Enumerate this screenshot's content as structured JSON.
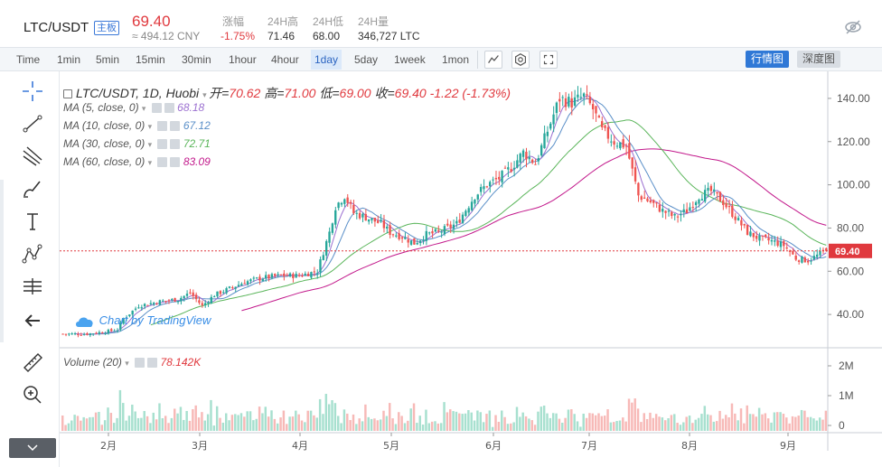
{
  "header": {
    "pair": "LTC/USDT",
    "tag": "主板",
    "last_price": "69.40",
    "cny": "≈ 494.12 CNY",
    "stats": [
      {
        "label": "涨幅",
        "value": "-1.75%",
        "red": true
      },
      {
        "label": "24H高",
        "value": "71.46",
        "red": false
      },
      {
        "label": "24H低",
        "value": "68.00",
        "red": false
      },
      {
        "label": "24H量",
        "value": "346,727 LTC",
        "red": false
      }
    ]
  },
  "toolbar": {
    "intervals": [
      "Time",
      "1min",
      "5min",
      "15min",
      "30min",
      "1hour",
      "4hour",
      "1day",
      "5day",
      "1week",
      "1mon"
    ],
    "active_interval": "1day",
    "view_on": "行情图",
    "view_off": "深度图"
  },
  "legend": {
    "title": "LTC/USDT, 1D, Huobi",
    "open_label": "开=",
    "open": "70.62",
    "high_label": "高=",
    "high": "71.00",
    "low_label": "低=",
    "low": "69.00",
    "close_label": "收=",
    "close": "69.40",
    "change": "-1.22 (-1.73%)",
    "ma": [
      {
        "label": "MA (5, close, 0)",
        "value": "68.18",
        "color": "#9b6fd0"
      },
      {
        "label": "MA (10, close, 0)",
        "value": "67.12",
        "color": "#5a8fc8"
      },
      {
        "label": "MA (30, close, 0)",
        "value": "72.71",
        "color": "#5ab55a"
      },
      {
        "label": "MA (60, close, 0)",
        "value": "83.09",
        "color": "#c2188b"
      }
    ],
    "volume_label": "Volume (20)",
    "volume_value": "78.142K"
  },
  "watermark": "Chart by TradingView",
  "price_axis": {
    "ticks": [
      "140.00",
      "120.00",
      "100.00",
      "80.00",
      "60.00",
      "40.00"
    ],
    "current": "69.40"
  },
  "volume_axis": {
    "ticks": [
      "2M",
      "1M",
      "0"
    ]
  },
  "time_axis": {
    "ticks": [
      "2月",
      "3月",
      "4月",
      "5月",
      "6月",
      "7月",
      "8月",
      "9月"
    ]
  },
  "colors": {
    "up": "#26a69a",
    "down": "#ef5350",
    "up_vol": "#a7e0cf",
    "down_vol": "#f7b9b7",
    "ma5": "#9b6fd0",
    "ma10": "#5a8fc8",
    "ma30": "#5ab55a",
    "ma60": "#c2188b",
    "price_line": "#e0393e",
    "accent": "#2f78d6"
  },
  "chart_data": {
    "type": "candlestick",
    "y_range": [
      25,
      150
    ],
    "price_path": [
      [
        0,
        31
      ],
      [
        8,
        31
      ],
      [
        14,
        32
      ],
      [
        18,
        33
      ],
      [
        20,
        38
      ],
      [
        25,
        44
      ],
      [
        32,
        46
      ],
      [
        38,
        47
      ],
      [
        42,
        50
      ],
      [
        46,
        44
      ],
      [
        50,
        49
      ],
      [
        55,
        52
      ],
      [
        60,
        55
      ],
      [
        66,
        57
      ],
      [
        72,
        58
      ],
      [
        78,
        58
      ],
      [
        84,
        60
      ],
      [
        88,
        78
      ],
      [
        90,
        90
      ],
      [
        93,
        95
      ],
      [
        96,
        87
      ],
      [
        100,
        85
      ],
      [
        105,
        82
      ],
      [
        108,
        78
      ],
      [
        112,
        76
      ],
      [
        116,
        73
      ],
      [
        120,
        77
      ],
      [
        124,
        78
      ],
      [
        130,
        82
      ],
      [
        136,
        95
      ],
      [
        140,
        100
      ],
      [
        144,
        103
      ],
      [
        148,
        108
      ],
      [
        152,
        115
      ],
      [
        156,
        110
      ],
      [
        160,
        125
      ],
      [
        164,
        140
      ],
      [
        168,
        138
      ],
      [
        172,
        141
      ],
      [
        175,
        135
      ],
      [
        178,
        125
      ],
      [
        182,
        120
      ],
      [
        186,
        118
      ],
      [
        190,
        95
      ],
      [
        194,
        92
      ],
      [
        198,
        88
      ],
      [
        202,
        85
      ],
      [
        206,
        88
      ],
      [
        210,
        95
      ],
      [
        214,
        97
      ],
      [
        218,
        92
      ],
      [
        222,
        85
      ],
      [
        226,
        78
      ],
      [
        230,
        75
      ],
      [
        234,
        74
      ],
      [
        238,
        72
      ],
      [
        242,
        66
      ],
      [
        246,
        65
      ],
      [
        250,
        68
      ],
      [
        252,
        69.4
      ]
    ]
  }
}
